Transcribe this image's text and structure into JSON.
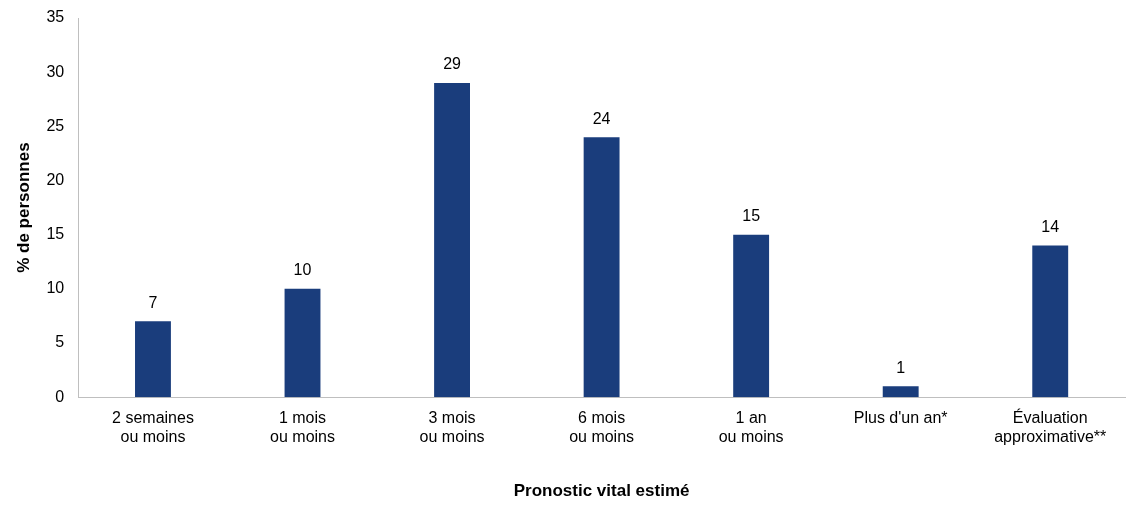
{
  "chart_data": {
    "type": "bar",
    "xlabel": "Pronostic vital estimé",
    "ylabel": "% de personnes",
    "categories": [
      "2 semaines\nou moins",
      "1 mois\nou moins",
      "3 mois\nou moins",
      "6 mois\nou moins",
      "1 an\nou moins",
      "Plus d'un an*",
      "Évaluation\napproximative**"
    ],
    "values": [
      7,
      10,
      29,
      24,
      15,
      1,
      14
    ],
    "color": "#1a3d7c",
    "ylim": [
      0,
      35
    ],
    "yticks": [
      0,
      5,
      10,
      15,
      20,
      25,
      30,
      35
    ],
    "grid": false,
    "data_labels": true
  }
}
